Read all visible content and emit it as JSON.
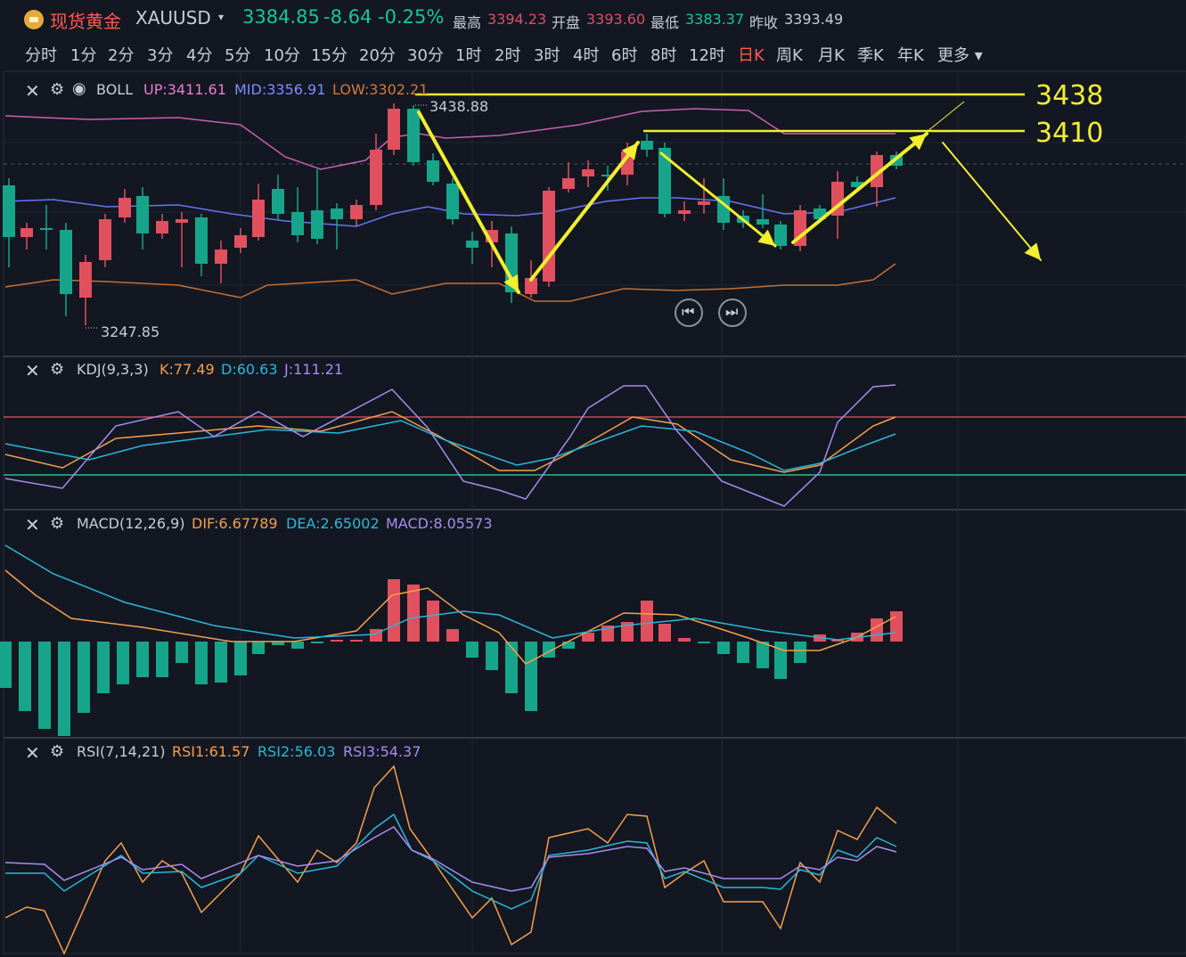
{
  "header": {
    "symbol_name": "现货黄金",
    "symbol_code": "XAUUSD",
    "price": "3384.85",
    "change": "-8.64",
    "change_pct": "-0.25%",
    "high_label": "最高",
    "high": "3394.23",
    "open_label": "开盘",
    "open": "3393.60",
    "low_label": "最低",
    "low": "3383.37",
    "prev_label": "昨收",
    "prev": "3393.49"
  },
  "tabs": [
    "分时",
    "1分",
    "2分",
    "3分",
    "4分",
    "5分",
    "10分",
    "15分",
    "20分",
    "30分",
    "1时",
    "2时",
    "3时",
    "4时",
    "6时",
    "8时",
    "12时",
    "日K",
    "周K",
    "月K",
    "季K",
    "年K",
    "更多"
  ],
  "active_tab": "日K",
  "boll": {
    "name": "BOLL",
    "up": "UP:3411.61",
    "mid": "MID:3356.91",
    "low": "LOW:3302.21"
  },
  "kdj": {
    "name": "KDJ(9,3,3)",
    "k": "K:77.49",
    "d": "D:60.63",
    "j": "J:111.21"
  },
  "macd": {
    "name": "MACD(12,26,9)",
    "dif": "DIF:6.67789",
    "dea": "DEA:2.65002",
    "macd": "MACD:8.05573"
  },
  "rsi": {
    "name": "RSI(7,14,21)",
    "rsi1": "RSI1:61.57",
    "rsi2": "RSI2:56.03",
    "rsi3": "RSI3:54.37"
  },
  "annotations": {
    "high_mark": "3438.88",
    "low_mark": "3247.85",
    "level_1": "3438",
    "level_2": "3410"
  },
  "colors": {
    "up": "#e0505e",
    "down": "#16a58a",
    "accent": "#ff5a4a",
    "yellow": "#f2ee30"
  }
}
